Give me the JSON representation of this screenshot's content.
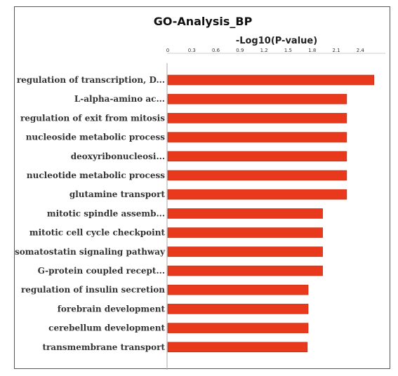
{
  "chart_data": {
    "type": "bar",
    "orientation": "horizontal",
    "title": "GO-Analysis_BP",
    "xlabel": "-Log10(P-value)",
    "ylabel": "",
    "xlim": [
      0,
      2.7
    ],
    "xticks": [
      "0",
      "0.3",
      "0.6",
      "0.9",
      "1.2",
      "1.5",
      "1.8",
      "2.1",
      "2.4"
    ],
    "grid": false,
    "color": "#e8391d",
    "categories": [
      "regulation of transcription, D...",
      "L-alpha-amino ac...",
      "regulation of exit from mitosis",
      "nucleoside metabolic process",
      "deoxyribonucleosi...",
      "nucleotide metabolic process",
      "glutamine transport",
      "mitotic spindle assemb...",
      "mitotic cell cycle checkpoint",
      "somatostatin signaling pathway",
      "G-protein coupled recept...",
      "regulation of insulin secretion",
      "forebrain development",
      "cerebellum development",
      "transmembrane transport"
    ],
    "values": [
      2.57,
      2.23,
      2.23,
      2.23,
      2.23,
      2.23,
      2.23,
      1.93,
      1.93,
      1.93,
      1.93,
      1.75,
      1.75,
      1.75,
      1.74
    ]
  }
}
